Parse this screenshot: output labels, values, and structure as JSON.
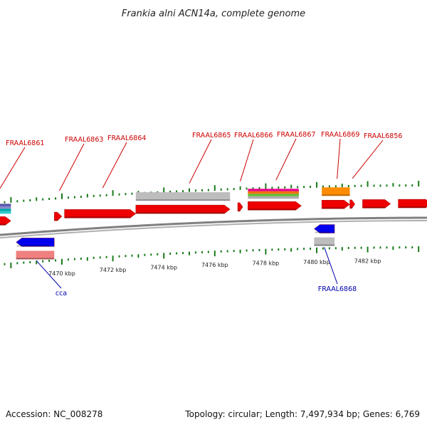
{
  "title": "Frankia alni ACN14a, complete genome",
  "footer": {
    "accession": "Accession: NC_008278",
    "summary": "Topology: circular; Length: 7,497,934 bp; Genes: 6,769"
  },
  "colors": {
    "cds": "#ee0000",
    "cds_light": "#f08080",
    "reverse": "#0000ee",
    "gray": "#bdbdbd",
    "orange": "#ff8c00",
    "backbone": "#808080",
    "tick": "#1a7a1a"
  },
  "chart_data": {
    "type": "genome-map",
    "view_range_kbp": [
      7467.0,
      7484.5
    ],
    "tick_labels_kbp": [
      7470,
      7472,
      7474,
      7476,
      7478,
      7480,
      7482
    ],
    "tick_unit": "kbp",
    "forward_genes": [
      {
        "start": 7467.0,
        "end": 7468.0,
        "color": "cds"
      },
      {
        "start": 7469.7,
        "end": 7470.0,
        "color": "cds"
      },
      {
        "start": 7470.1,
        "end": 7472.9,
        "color": "cds"
      },
      {
        "start": 7472.9,
        "end": 7476.6,
        "color": "cds"
      },
      {
        "start": 7476.9,
        "end": 7477.1,
        "color": "cds"
      },
      {
        "start": 7477.3,
        "end": 7479.4,
        "color": "cds"
      },
      {
        "start": 7480.2,
        "end": 7481.3,
        "color": "cds"
      },
      {
        "start": 7481.3,
        "end": 7481.5,
        "color": "cds"
      },
      {
        "start": 7481.8,
        "end": 7482.9,
        "color": "cds"
      },
      {
        "start": 7483.2,
        "end": 7484.5,
        "color": "cds"
      }
    ],
    "other_features": [
      {
        "start": 7472.9,
        "end": 7476.6,
        "color": "gray"
      },
      {
        "start": 7477.3,
        "end": 7479.3,
        "color": "stack"
      },
      {
        "start": 7480.2,
        "end": 7481.3,
        "color": "orange"
      },
      {
        "start": 7467.0,
        "end": 7468.0,
        "color": "stack2"
      }
    ],
    "reverse_genes": [
      {
        "start": 7468.2,
        "end": 7469.7,
        "color": "reverse"
      },
      {
        "start": 7468.2,
        "end": 7469.7,
        "color": "cds_light"
      },
      {
        "start": 7479.9,
        "end": 7480.7,
        "color": "reverse"
      },
      {
        "start": 7479.9,
        "end": 7480.7,
        "color": "gray"
      }
    ],
    "top_labels": [
      {
        "text": "FRAAL6861",
        "pos": 7467.4
      },
      {
        "text": "FRAAL6863",
        "pos": 7469.9
      },
      {
        "text": "FRAAL6864",
        "pos": 7471.6
      },
      {
        "text": "FRAAL6865",
        "pos": 7475.0
      },
      {
        "text": "FRAAL6866",
        "pos": 7477.0
      },
      {
        "text": "FRAAL6867",
        "pos": 7478.4
      },
      {
        "text": "FRAAL6869",
        "pos": 7480.8
      },
      {
        "text": "FRAAL6856",
        "pos": 7481.4
      }
    ],
    "bottom_labels": [
      {
        "text": "cca",
        "pos": 7469.0
      },
      {
        "text": "FRAAL6868",
        "pos": 7480.3
      }
    ]
  }
}
